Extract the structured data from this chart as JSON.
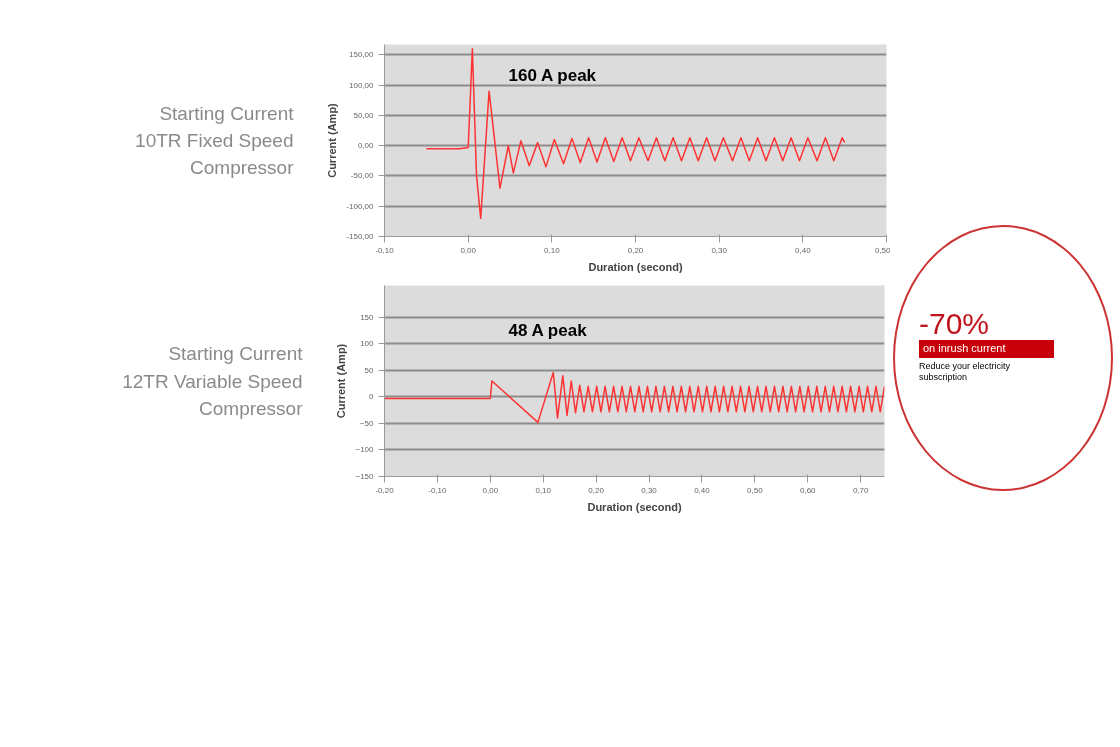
{
  "chart_data": [
    {
      "type": "line",
      "title": "Starting Current\n10TR Fixed Speed\nCompressor",
      "xlabel": "Duration (second)",
      "ylabel": "Current (Amp)",
      "annotations": [
        "160 A peak"
      ],
      "grid": "y",
      "xlim": [
        -0.1,
        0.5
      ],
      "xticks": [
        {
          "value": -0.1,
          "label": "-0,10"
        },
        {
          "value": 0.0,
          "label": "0,00"
        },
        {
          "value": 0.1,
          "label": "0,10"
        },
        {
          "value": 0.2,
          "label": "0,20"
        },
        {
          "value": 0.3,
          "label": "0,30"
        },
        {
          "value": 0.4,
          "label": "0,40"
        },
        {
          "value": 0.5,
          "label": "0,50"
        }
      ],
      "ylim": [
        -150,
        167
      ],
      "yticks": [
        {
          "value": -150,
          "label": "-150,00"
        },
        {
          "value": -100,
          "label": "-100,00"
        },
        {
          "value": -50,
          "label": "-50,00"
        },
        {
          "value": 0,
          "label": "0,00"
        },
        {
          "value": 50,
          "label": "50,00"
        },
        {
          "value": 100,
          "label": "100,00"
        },
        {
          "value": 150,
          "label": "150,00"
        }
      ],
      "series": [
        {
          "color": "#ff3333",
          "x": [
            -0.05,
            -0.01,
            0.0,
            0.002,
            0.005,
            0.01,
            0.015,
            0.025,
            0.038,
            0.048,
            0.054,
            0.063,
            0.073,
            0.083,
            0.093,
            0.103,
            0.114,
            0.124,
            0.134,
            0.144,
            0.154,
            0.164,
            0.174,
            0.184,
            0.194,
            0.204,
            0.215,
            0.225,
            0.235,
            0.245,
            0.255,
            0.265,
            0.275,
            0.285,
            0.295,
            0.305,
            0.316,
            0.326,
            0.336,
            0.346,
            0.356,
            0.366,
            0.376,
            0.386,
            0.396,
            0.406,
            0.417,
            0.427,
            0.437,
            0.447,
            0.45
          ],
          "values": [
            -5,
            -5,
            -3,
            60,
            160,
            -50,
            -120,
            90,
            -70,
            0,
            -45,
            8,
            -33,
            5,
            -35,
            10,
            -30,
            12,
            -28,
            13,
            -27,
            13,
            -26,
            13,
            -25,
            13,
            -25,
            13,
            -25,
            13,
            -25,
            13,
            -25,
            13,
            -25,
            13,
            -25,
            13,
            -25,
            13,
            -25,
            13,
            -25,
            13,
            -25,
            13,
            -25,
            13,
            -25,
            13,
            5
          ]
        }
      ]
    },
    {
      "type": "line",
      "title": "Starting Current\n12TR Variable Speed\nCompressor",
      "xlabel": "Duration (second)",
      "ylabel": "Current (Amp)",
      "annotations": [
        "48 A peak",
        "-70%",
        "on inrush current",
        "Reduce your electricity\nsubscription"
      ],
      "grid": "y",
      "xlim": [
        -0.2,
        0.745
      ],
      "xticks": [
        {
          "value": -0.2,
          "label": "-0,20"
        },
        {
          "value": -0.1,
          "label": "-0,10"
        },
        {
          "value": 0.0,
          "label": "0,00"
        },
        {
          "value": 0.1,
          "label": "0,10"
        },
        {
          "value": 0.2,
          "label": "0,20"
        },
        {
          "value": 0.3,
          "label": "0,30"
        },
        {
          "value": 0.4,
          "label": "0,40"
        },
        {
          "value": 0.5,
          "label": "0,50"
        },
        {
          "value": 0.6,
          "label": "0,60"
        },
        {
          "value": 0.7,
          "label": "0,70"
        }
      ],
      "ylim": [
        -150,
        210
      ],
      "yticks": [
        -150,
        -100,
        -50,
        0,
        50,
        100,
        150
      ],
      "series": [
        {
          "color": "#ff3333",
          "x": [
            -0.2,
            0.0,
            0.003,
            0.09,
            0.119,
            0.127,
            0.137,
            0.145,
            0.153,
            0.161,
            0.169,
            0.177,
            0.185,
            0.193,
            0.201,
            0.209,
            0.217,
            0.225,
            0.233,
            0.241,
            0.249,
            0.257,
            0.265,
            0.273,
            0.281,
            0.289,
            0.297,
            0.305,
            0.313,
            0.321,
            0.329,
            0.337,
            0.345,
            0.353,
            0.361,
            0.369,
            0.377,
            0.385,
            0.393,
            0.401,
            0.409,
            0.417,
            0.425,
            0.433,
            0.441,
            0.449,
            0.457,
            0.465,
            0.473,
            0.481,
            0.489,
            0.497,
            0.505,
            0.513,
            0.521,
            0.529,
            0.537,
            0.545,
            0.553,
            0.561,
            0.569,
            0.577,
            0.585,
            0.593,
            0.601,
            0.609,
            0.617,
            0.625,
            0.633,
            0.641,
            0.649,
            0.657,
            0.665,
            0.673,
            0.681,
            0.689,
            0.697,
            0.705,
            0.713,
            0.721,
            0.729,
            0.737,
            0.745
          ],
          "values": [
            -3,
            -3,
            30,
            -48,
            46,
            -40,
            40,
            -35,
            30,
            -30,
            22,
            -28,
            20,
            -28,
            20,
            -28,
            20,
            -28,
            20,
            -28,
            20,
            -28,
            20,
            -28,
            20,
            -28,
            20,
            -28,
            20,
            -28,
            20,
            -28,
            20,
            -28,
            20,
            -28,
            20,
            -28,
            20,
            -28,
            20,
            -28,
            20,
            -28,
            20,
            -28,
            20,
            -28,
            20,
            -28,
            20,
            -28,
            20,
            -28,
            20,
            -28,
            20,
            -28,
            20,
            -28,
            20,
            -28,
            20,
            -28,
            20,
            -28,
            20,
            -28,
            20,
            -28,
            20,
            -28,
            20,
            -28,
            20,
            -28,
            20,
            -28,
            20,
            -28,
            20,
            -28,
            20
          ]
        }
      ]
    }
  ]
}
